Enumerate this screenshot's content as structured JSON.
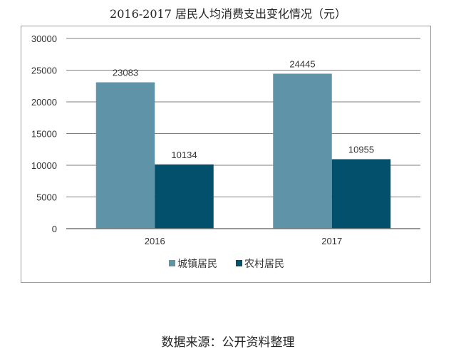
{
  "chart_data": {
    "type": "bar",
    "title": "2016-2017 居民人均消费支出变化情况（元）",
    "categories": [
      "2016",
      "2017"
    ],
    "series": [
      {
        "name": "城镇居民",
        "values": [
          23083,
          24445
        ],
        "color": "#5f93a8"
      },
      {
        "name": "农村居民",
        "values": [
          10134,
          10955
        ],
        "color": "#02506b"
      }
    ],
    "ylim": [
      0,
      30000
    ],
    "yticks": [
      0,
      5000,
      10000,
      15000,
      20000,
      25000,
      30000
    ],
    "grid": true,
    "legend": "bottom",
    "xlabel": "",
    "ylabel": ""
  },
  "source": "数据来源：公开资料整理"
}
